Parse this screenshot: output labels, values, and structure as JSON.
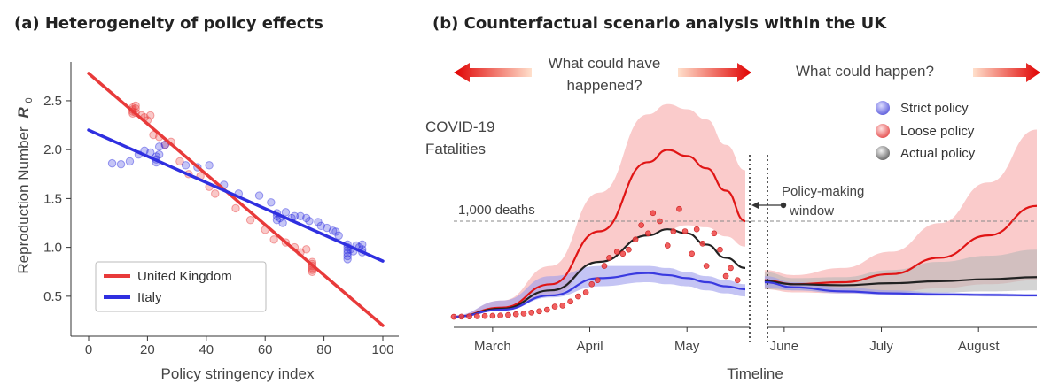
{
  "panel_a": {
    "title": "(a) Heterogeneity of policy effects",
    "ylabel": "Reproduction Number",
    "ylabel_symbol": "R",
    "ylabel_sub": "0",
    "xlabel": "Policy stringency index"
  },
  "panel_b": {
    "title": "(b) Counterfactual scenario analysis within the UK",
    "header_left_1": "What could have",
    "header_left_2": "happened?",
    "header_right": "What could happen?",
    "y_label_1": "COVID-19",
    "y_label_2": "Fatalities",
    "threshold_label": "1,000 deaths",
    "window_label_1": "Policy-making",
    "window_label_2": "window",
    "xlabel": "Timeline"
  },
  "colors": {
    "uk": "#e83a3a",
    "italy": "#2f2fe0",
    "strict": "#3a3ae0",
    "loose": "#e01515",
    "actual": "#222222",
    "loose_band": "#f7a9a9",
    "strict_band": "#9c9cec",
    "actual_band": "#b8b8b8"
  },
  "chart_data": [
    {
      "type": "scatter",
      "xlim": [
        -5,
        102
      ],
      "ylim": [
        0.1,
        3.0
      ],
      "xticks": [
        0,
        20,
        40,
        60,
        80,
        100
      ],
      "xtick_labels": [
        "0",
        "20",
        "40",
        "60",
        "80",
        "100"
      ],
      "yticks": [
        0.5,
        1.0,
        1.5,
        2.0,
        2.5
      ],
      "ytick_labels": [
        "0.5",
        "1.0",
        "1.5",
        "2.0",
        "2.5"
      ],
      "grid": false,
      "legend_position": "bottom-left",
      "series": [
        {
          "name": "United Kingdom",
          "fit": {
            "x": [
              0,
              100
            ],
            "y": [
              2.78,
              0.2
            ]
          },
          "points": [
            [
              15,
              2.43
            ],
            [
              15,
              2.41
            ],
            [
              15,
              2.39
            ],
            [
              15,
              2.37
            ],
            [
              16,
              2.42
            ],
            [
              16,
              2.38
            ],
            [
              16,
              2.45
            ],
            [
              18,
              2.35
            ],
            [
              19,
              2.33
            ],
            [
              20,
              2.3
            ],
            [
              21,
              2.35
            ],
            [
              22,
              2.15
            ],
            [
              24,
              2.13
            ],
            [
              26,
              2.05
            ],
            [
              28,
              2.08
            ],
            [
              31,
              1.88
            ],
            [
              34,
              1.75
            ],
            [
              38,
              1.73
            ],
            [
              41,
              1.62
            ],
            [
              43,
              1.55
            ],
            [
              50,
              1.4
            ],
            [
              55,
              1.28
            ],
            [
              60,
              1.18
            ],
            [
              63,
              1.08
            ],
            [
              67,
              1.05
            ],
            [
              70,
              1.0
            ],
            [
              72,
              0.95
            ],
            [
              74,
              0.98
            ],
            [
              76,
              0.83
            ],
            [
              76,
              0.81
            ],
            [
              76,
              0.79
            ],
            [
              76,
              0.77
            ],
            [
              76,
              0.85
            ],
            [
              76,
              0.75
            ]
          ]
        },
        {
          "name": "Italy",
          "fit": {
            "x": [
              0,
              100
            ],
            "y": [
              2.2,
              0.86
            ]
          },
          "points": [
            [
              8,
              1.86
            ],
            [
              11,
              1.85
            ],
            [
              14,
              1.88
            ],
            [
              17,
              1.95
            ],
            [
              19,
              1.99
            ],
            [
              21,
              1.97
            ],
            [
              23,
              1.93
            ],
            [
              23,
              1.9
            ],
            [
              23,
              1.87
            ],
            [
              24,
              1.95
            ],
            [
              24,
              2.03
            ],
            [
              26,
              2.05
            ],
            [
              33,
              1.84
            ],
            [
              37,
              1.82
            ],
            [
              41,
              1.84
            ],
            [
              46,
              1.64
            ],
            [
              51,
              1.55
            ],
            [
              58,
              1.53
            ],
            [
              62,
              1.46
            ],
            [
              64,
              1.35
            ],
            [
              64,
              1.32
            ],
            [
              64,
              1.28
            ],
            [
              65,
              1.3
            ],
            [
              66,
              1.25
            ],
            [
              67,
              1.36
            ],
            [
              69,
              1.3
            ],
            [
              70,
              1.32
            ],
            [
              72,
              1.32
            ],
            [
              74,
              1.3
            ],
            [
              75,
              1.27
            ],
            [
              78,
              1.26
            ],
            [
              79,
              1.22
            ],
            [
              81,
              1.2
            ],
            [
              83,
              1.17
            ],
            [
              84,
              1.16
            ],
            [
              85,
              1.12
            ],
            [
              88,
              1.03
            ],
            [
              88,
              1.0
            ],
            [
              88,
              0.97
            ],
            [
              88,
              0.94
            ],
            [
              88,
              0.91
            ],
            [
              88,
              0.88
            ],
            [
              89,
              0.98
            ],
            [
              90,
              0.96
            ],
            [
              91,
              1.02
            ],
            [
              92,
              1.0
            ],
            [
              93,
              0.98
            ],
            [
              93,
              1.03
            ],
            [
              93,
              0.95
            ]
          ]
        }
      ]
    },
    {
      "type": "line",
      "x_ticks": [
        "March",
        "April",
        "May",
        "June",
        "July",
        "August"
      ],
      "threshold": {
        "label": "1,000 deaths",
        "value": 1000
      },
      "legend_position": "top-right",
      "legend": [
        "Strict policy",
        "Loose policy",
        "Actual policy"
      ],
      "segments": [
        {
          "name": "past",
          "x": [
            0,
            0.5,
            1,
            1.5,
            2,
            2.2,
            2.4,
            2.6,
            2.8,
            3
          ],
          "series": [
            {
              "name": "Loose policy",
              "values": [
                60,
                150,
                380,
                900,
                1580,
                1700,
                1640,
                1520,
                1300,
                1000
              ],
              "upper": [
                70,
                220,
                560,
                1280,
                2050,
                2150,
                2100,
                2000,
                1750,
                1500
              ],
              "lower": [
                55,
                130,
                270,
                600,
                860,
                920,
                960,
                940,
                850,
                750
              ]
            },
            {
              "name": "Actual policy",
              "values": [
                60,
                140,
                320,
                600,
                860,
                920,
                880,
                770,
                640,
                540
              ]
            },
            {
              "name": "Strict policy",
              "values": [
                60,
                130,
                270,
                440,
                490,
                470,
                440,
                400,
                360,
                330
              ],
              "upper": [
                75,
                220,
                460,
                560,
                560,
                540,
                500,
                460,
                420,
                380
              ],
              "lower": [
                55,
                120,
                250,
                360,
                400,
                380,
                360,
                320,
                290,
                260
              ]
            }
          ],
          "observed": [
            [
              0.0,
              60
            ],
            [
              0.08,
              62
            ],
            [
              0.16,
              64
            ],
            [
              0.24,
              66
            ],
            [
              0.32,
              68
            ],
            [
              0.4,
              70
            ],
            [
              0.48,
              72
            ],
            [
              0.56,
              78
            ],
            [
              0.64,
              85
            ],
            [
              0.72,
              92
            ],
            [
              0.8,
              102
            ],
            [
              0.88,
              115
            ],
            [
              0.96,
              130
            ],
            [
              1.04,
              160
            ],
            [
              1.12,
              170
            ],
            [
              1.2,
              210
            ],
            [
              1.28,
              260
            ],
            [
              1.36,
              300
            ],
            [
              1.42,
              380
            ],
            [
              1.48,
              420
            ],
            [
              1.55,
              560
            ],
            [
              1.6,
              640
            ],
            [
              1.68,
              700
            ],
            [
              1.74,
              680
            ],
            [
              1.8,
              720
            ],
            [
              1.87,
              820
            ],
            [
              1.93,
              960
            ],
            [
              2.0,
              880
            ],
            [
              2.05,
              1080
            ],
            [
              2.12,
              1000
            ],
            [
              2.2,
              760
            ],
            [
              2.26,
              900
            ],
            [
              2.32,
              1120
            ],
            [
              2.38,
              900
            ],
            [
              2.45,
              680
            ],
            [
              2.5,
              920
            ],
            [
              2.56,
              780
            ],
            [
              2.6,
              560
            ],
            [
              2.68,
              880
            ],
            [
              2.74,
              720
            ],
            [
              2.8,
              460
            ],
            [
              2.85,
              540
            ],
            [
              2.92,
              420
            ]
          ]
        },
        {
          "name": "future",
          "x": [
            3.2,
            3.5,
            4,
            4.5,
            5,
            5.5,
            6
          ],
          "series": [
            {
              "name": "Loose policy",
              "values": [
                420,
                380,
                400,
                480,
                640,
                860,
                1150
              ],
              "upper": [
                520,
                470,
                540,
                700,
                980,
                1380,
                1900
              ],
              "lower": [
                330,
                300,
                290,
                300,
                340,
                380,
                420
              ]
            },
            {
              "name": "Actual policy",
              "values": [
                410,
                380,
                370,
                390,
                410,
                430,
                450
              ],
              "upper": [
                500,
                440,
                450,
                520,
                600,
                660,
                720
              ],
              "lower": [
                330,
                320,
                300,
                290,
                300,
                310,
                320
              ]
            },
            {
              "name": "Strict policy",
              "values": [
                400,
                350,
                310,
                290,
                280,
                275,
                270
              ],
              "upper": [
                460,
                400,
                350,
                320,
                300,
                290,
                285
              ],
              "lower": [
                350,
                320,
                290,
                275,
                265,
                260,
                258
              ]
            }
          ]
        }
      ]
    }
  ]
}
